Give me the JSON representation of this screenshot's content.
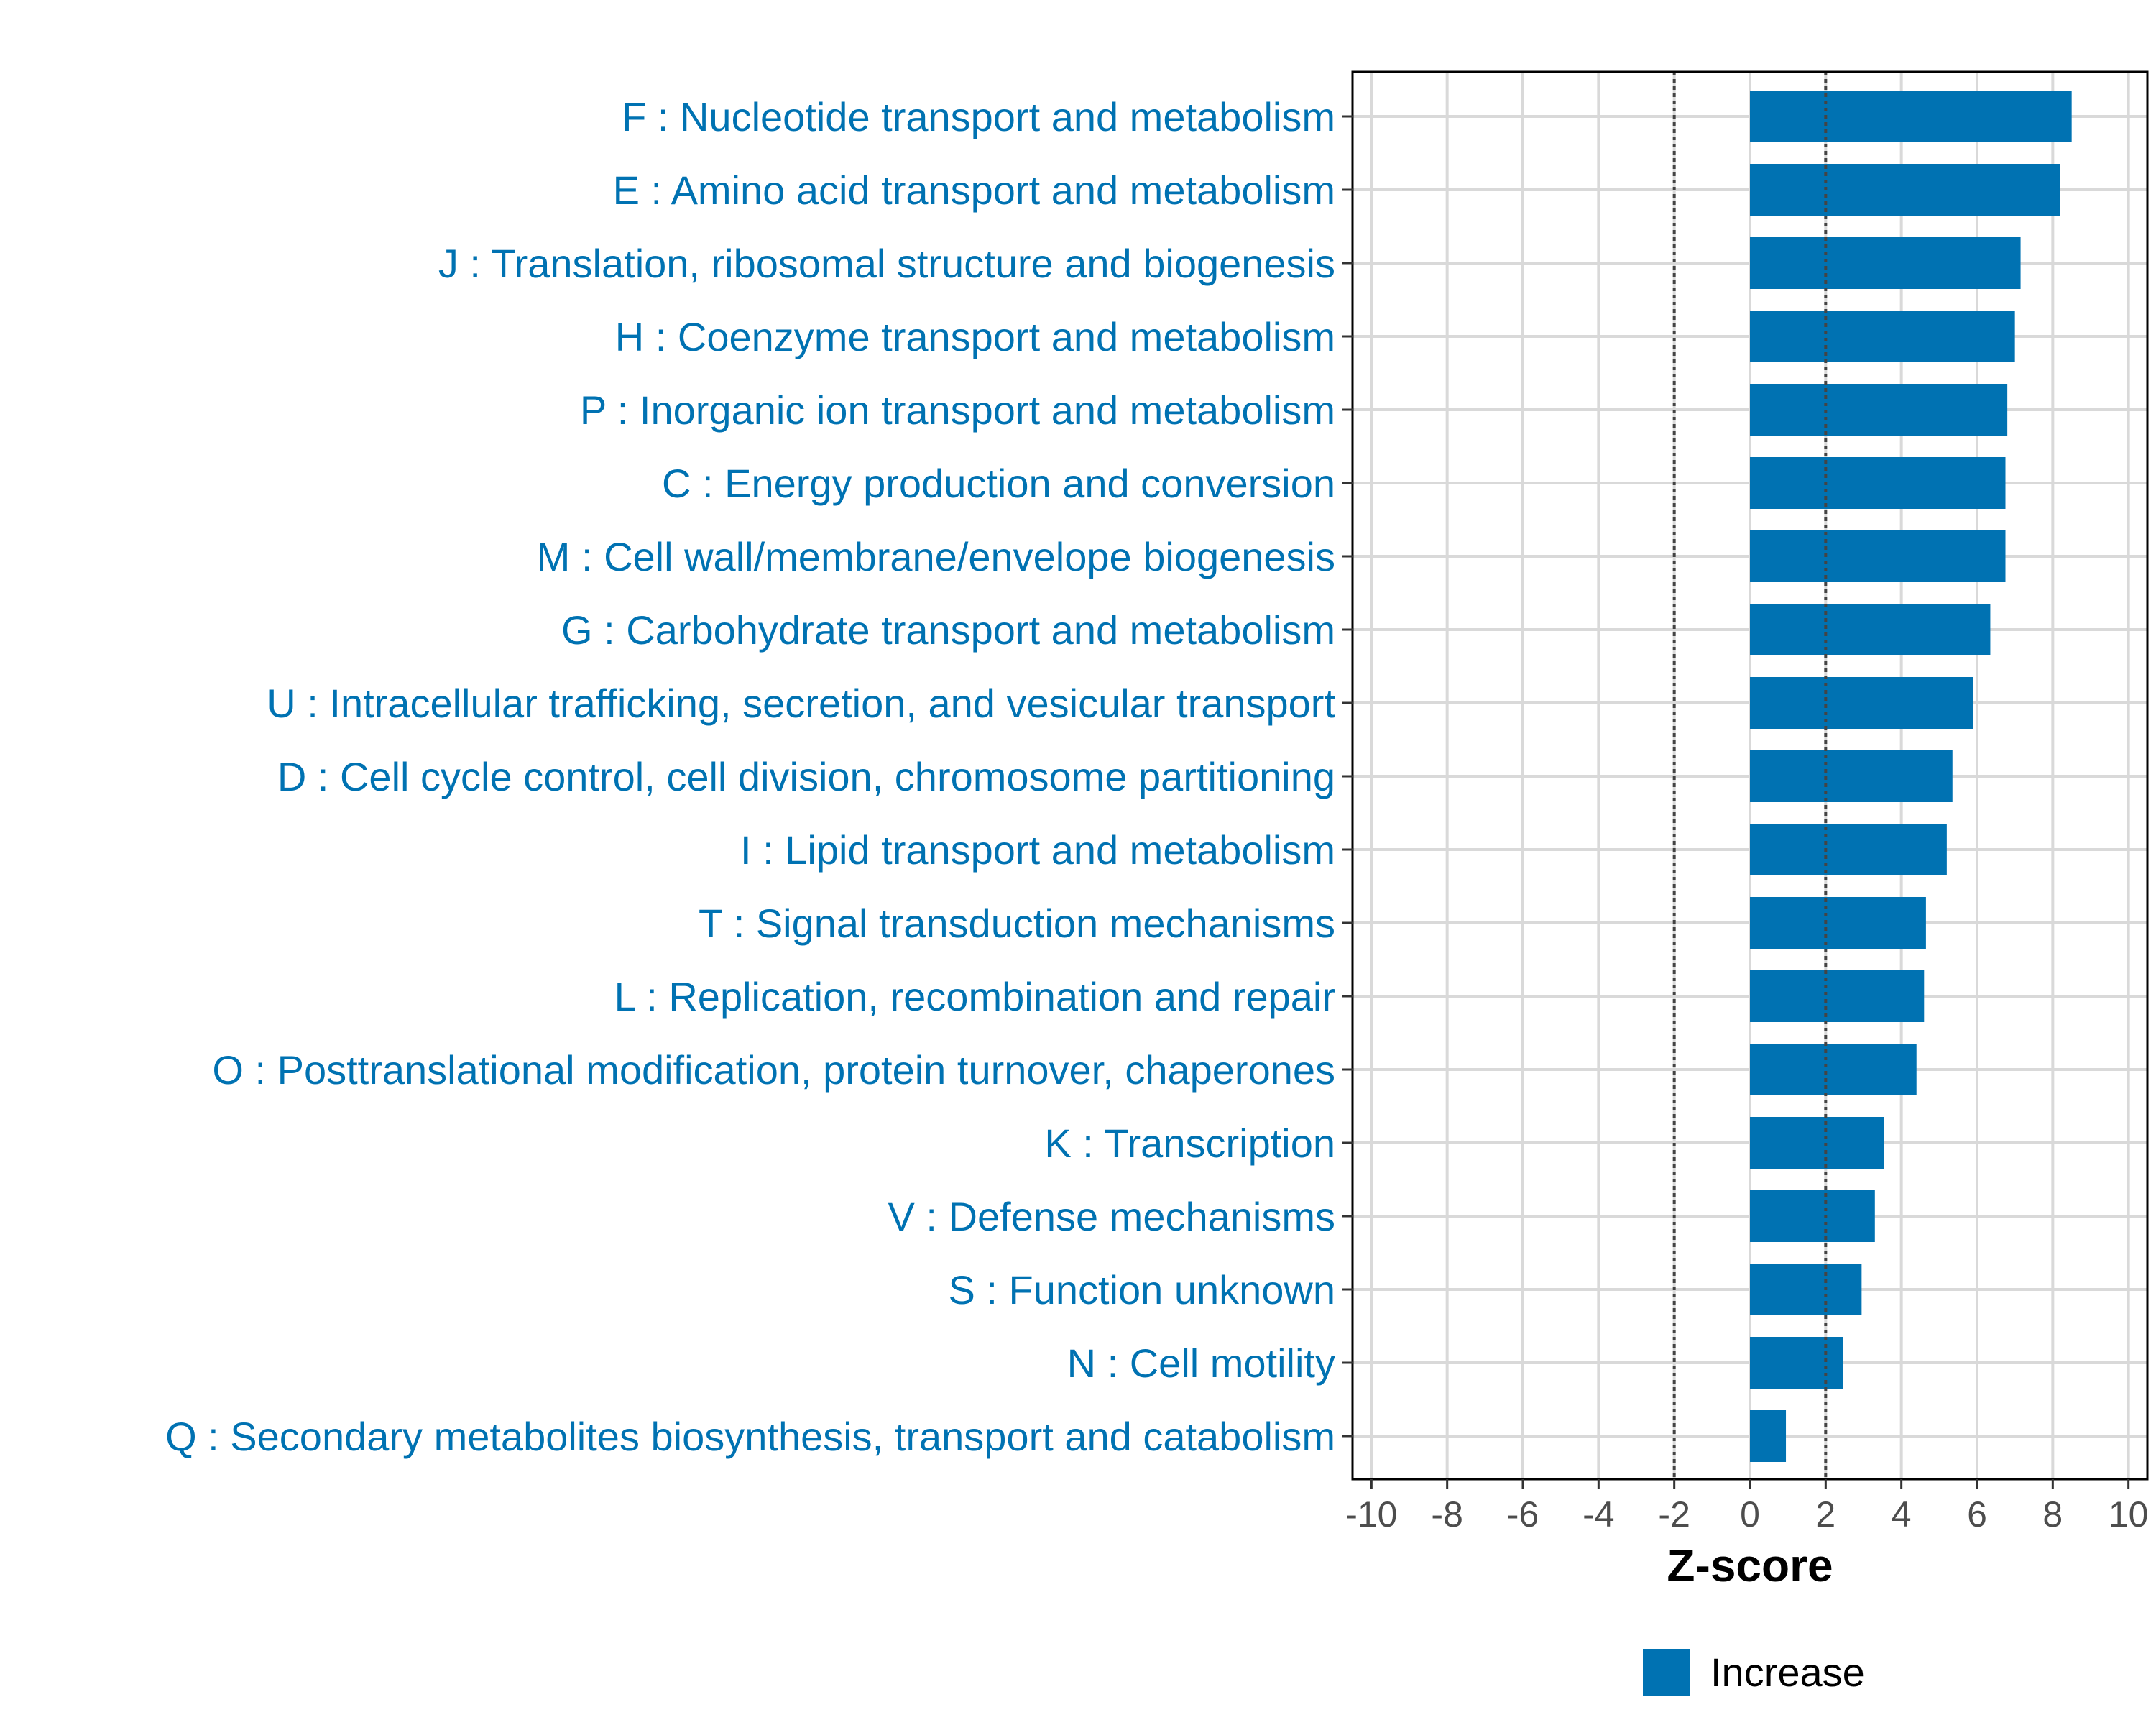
{
  "chart_data": {
    "type": "bar",
    "orientation": "horizontal",
    "categories": [
      "F : Nucleotide transport and metabolism",
      "E : Amino acid transport and metabolism",
      "J : Translation, ribosomal structure and biogenesis",
      "H : Coenzyme transport and metabolism",
      "P : Inorganic ion transport and metabolism",
      "C : Energy production and conversion",
      "M : Cell wall/membrane/envelope biogenesis",
      "G : Carbohydrate transport and metabolism",
      "U : Intracellular trafficking, secretion, and vesicular transport",
      "D : Cell cycle control, cell division, chromosome partitioning",
      "I : Lipid transport and metabolism",
      "T : Signal transduction mechanisms",
      "L : Replication, recombination and repair",
      "O : Posttranslational modification, protein turnover, chaperones",
      "K : Transcription",
      "V : Defense mechanisms",
      "S : Function unknown",
      "N : Cell motility",
      "Q : Secondary metabolites biosynthesis, transport and catabolism"
    ],
    "series": [
      {
        "name": "Increase",
        "color": "#0072B2",
        "values": [
          8.5,
          8.2,
          7.15,
          7.0,
          6.8,
          6.75,
          6.75,
          6.35,
          5.9,
          5.35,
          5.2,
          4.65,
          4.6,
          4.4,
          3.55,
          3.3,
          2.95,
          2.45,
          0.95
        ]
      }
    ],
    "xlabel": "Z-score",
    "ylabel": "",
    "xlim": [
      -10.5,
      10.5
    ],
    "xticks": [
      "-10",
      "-8",
      "-6",
      "-4",
      "-2",
      "0",
      "2",
      "4",
      "6",
      "8",
      "10"
    ],
    "reference_lines": [
      -2,
      2
    ],
    "grid": true,
    "legend": {
      "position": "bottom",
      "entries": [
        "Increase"
      ]
    },
    "colors": {
      "bar": "#0072B2",
      "label": "#0072B2",
      "grid": "#d9d9d9",
      "reference_line": "#444444"
    }
  }
}
